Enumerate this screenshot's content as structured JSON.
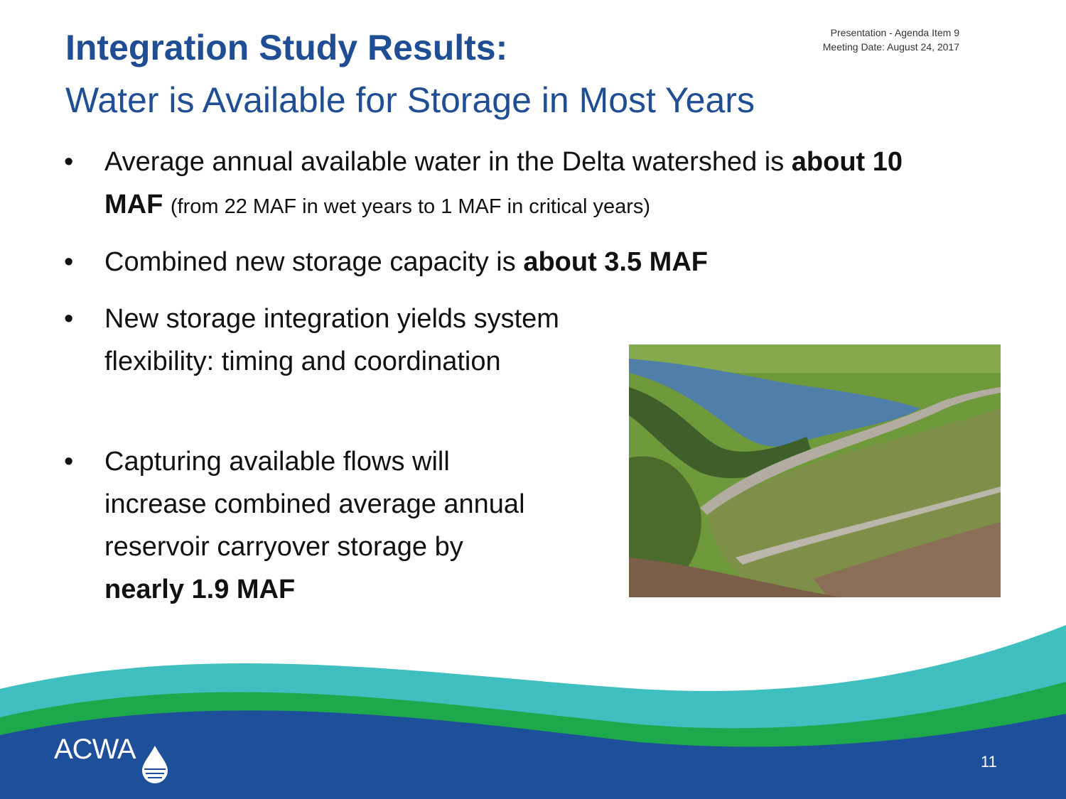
{
  "header": {
    "line1": "Presentation - Agenda Item 9",
    "line2": "Meeting Date:  August 24, 2017"
  },
  "title": "Integration Study Results:",
  "subtitle": "Water is Available for Storage in Most Years",
  "bullets": [
    {
      "text": "Average annual available water in the Delta watershed is",
      "bold": "about 10 MAF",
      "small": "(from 22 MAF in wet years to 1 MAF in critical years)"
    },
    {
      "text": "Combined new storage capacity is",
      "bold": "about 3.5 MAF"
    },
    {
      "text": "New storage integration yields system flexibility: timing and coordination"
    },
    {
      "text": "Capturing available flows will increase combined average annual reservoir carryover storage by",
      "bold": "nearly 1.9 MAF"
    }
  ],
  "footer": {
    "logo": "ACWA",
    "page": "11"
  }
}
